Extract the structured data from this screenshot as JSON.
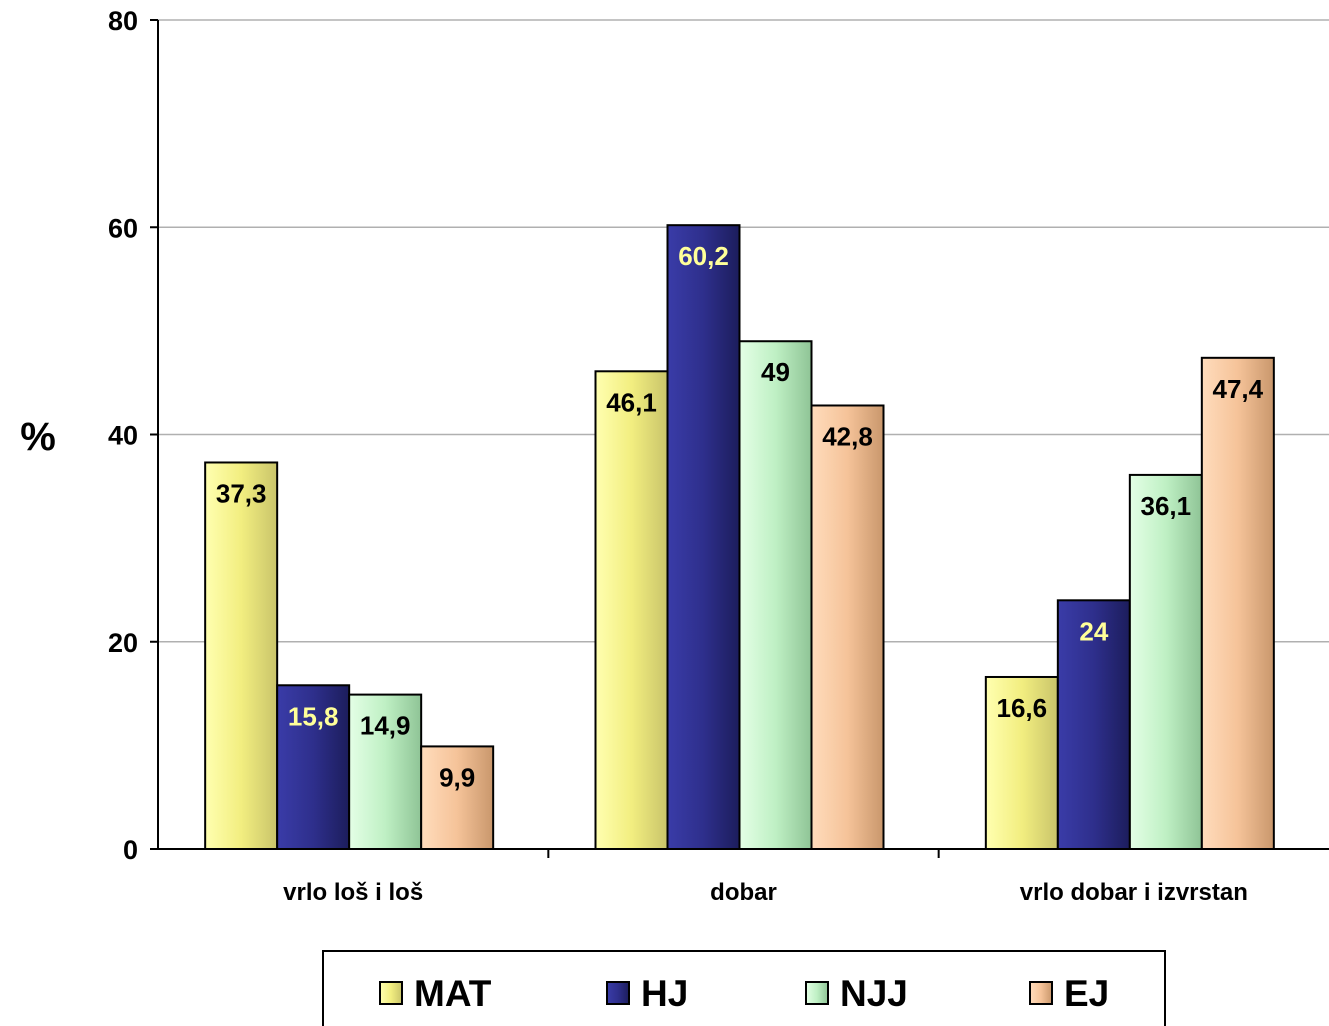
{
  "chart_data": {
    "type": "bar",
    "title": "",
    "xlabel": "",
    "ylabel": "%",
    "ylim": [
      0,
      80
    ],
    "yticks": [
      0,
      20,
      40,
      60,
      80
    ],
    "grid": true,
    "legend_position": "bottom",
    "categories": [
      "vrlo loš i loš",
      "dobar",
      "vrlo dobar i izvrstan"
    ],
    "series": [
      {
        "name": "MAT",
        "values": [
          37.3,
          46.1,
          16.6
        ],
        "labels": [
          "37,3",
          "46,1",
          "16,6"
        ],
        "color": "#f5f08a",
        "label_color": "#000000"
      },
      {
        "name": "HJ",
        "values": [
          15.8,
          60.2,
          24
        ],
        "labels": [
          "15,8",
          "60,2",
          "24"
        ],
        "color": "#2e2f8c",
        "label_color": "#ffff99"
      },
      {
        "name": "NJJ",
        "values": [
          14.9,
          49,
          36.1
        ],
        "labels": [
          "14,9",
          "49",
          "36,1"
        ],
        "color": "#bff0c4",
        "label_color": "#000000"
      },
      {
        "name": "EJ",
        "values": [
          9.9,
          42.8,
          47.4
        ],
        "labels": [
          "9,9",
          "42,8",
          "47,4"
        ],
        "color": "#f5c399",
        "label_color": "#000000"
      }
    ]
  }
}
